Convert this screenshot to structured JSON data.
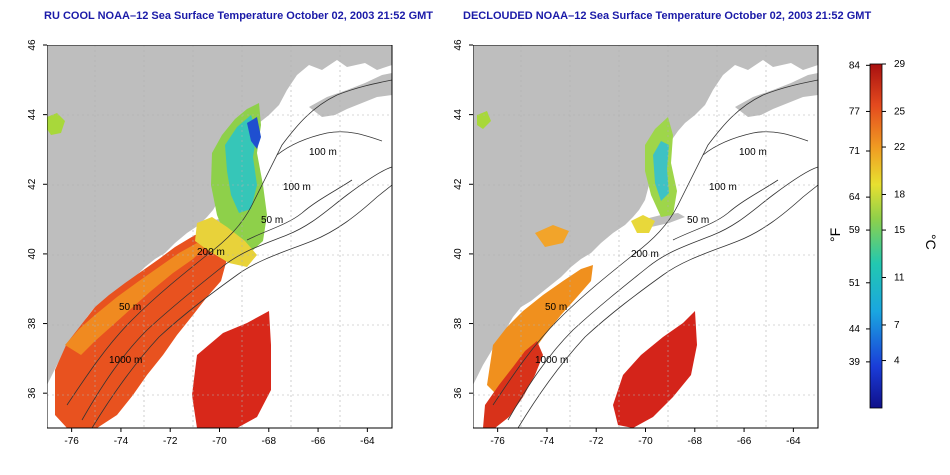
{
  "panels": [
    {
      "title": "RU COOL NOAA–12 Sea Surface Temperature October 02, 2003 21:52 GMT",
      "contour_labels": [
        "100 m",
        "100 m",
        "50 m",
        "200 m",
        "50 m",
        "1000 m"
      ]
    },
    {
      "title": "DECLOUDED NOAA–12 Sea Surface Temperature October 02, 2003 21:52 GMT",
      "contour_labels": [
        "100 m",
        "100 m",
        "50 m",
        "200 m",
        "50 m",
        "1000 m"
      ]
    }
  ],
  "axes": {
    "x_ticks": [
      "-76",
      "-74",
      "-72",
      "-70",
      "-68",
      "-66",
      "-64"
    ],
    "y_ticks": [
      "46",
      "44",
      "42",
      "40",
      "38",
      "36"
    ],
    "lon_range": [
      -77,
      -63
    ],
    "lat_range": [
      35,
      46
    ]
  },
  "colorbar": {
    "fahrenheit_ticks": [
      "84",
      "77",
      "71",
      "64",
      "59",
      "51",
      "44",
      "39"
    ],
    "celsius_ticks": [
      "29",
      "25",
      "22",
      "18",
      "15",
      "11",
      "7",
      "4"
    ],
    "fahrenheit_unit": "°F",
    "celsius_unit": "°C",
    "celsius_range": [
      0,
      29
    ]
  },
  "colors": {
    "land": "#bebebe",
    "cloud": "#ffffff",
    "title": "#1a1aa8"
  }
}
